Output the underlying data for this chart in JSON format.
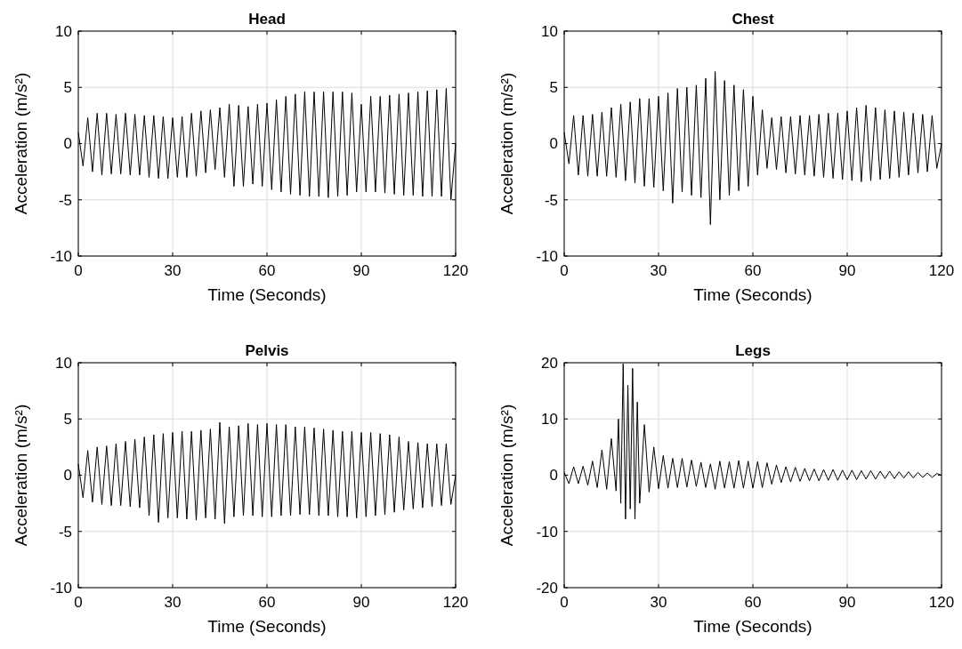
{
  "chart_data": [
    {
      "type": "line",
      "title": "Head",
      "xlabel": "Time (Seconds)",
      "ylabel": "Acceleration (m/s²)",
      "xlim": [
        0,
        120
      ],
      "xticks": [
        0,
        30,
        60,
        90,
        120
      ],
      "ylim": [
        -10,
        10
      ],
      "yticks": [
        -10,
        -5,
        0,
        5,
        10
      ],
      "grid": true,
      "x": [
        0,
        1.5,
        3,
        4.5,
        6,
        7.5,
        9,
        10.5,
        12,
        13.5,
        15,
        16.5,
        18,
        19.5,
        21,
        22.5,
        24,
        25.5,
        27,
        28.5,
        30,
        31.5,
        33,
        34.5,
        36,
        37.5,
        39,
        40.5,
        42,
        43.5,
        45,
        46.5,
        48,
        49.5,
        51,
        52.5,
        54,
        55.5,
        57,
        58.5,
        60,
        61.5,
        63,
        64.5,
        66,
        67.5,
        69,
        70.5,
        72,
        73.5,
        75,
        76.5,
        78,
        79.5,
        81,
        82.5,
        84,
        85.5,
        87,
        88.5,
        90,
        91.5,
        93,
        94.5,
        96,
        97.5,
        99,
        100.5,
        102,
        103.5,
        105,
        106.5,
        108,
        109.5,
        111,
        112.5,
        114,
        115.5,
        117,
        118.5,
        120
      ],
      "series": [
        {
          "color": "#000000",
          "values": [
            1,
            -2,
            2.3,
            -2.5,
            2.7,
            -2.8,
            2.7,
            -2.7,
            2.6,
            -2.7,
            2.7,
            -2.8,
            2.6,
            -2.8,
            2.5,
            -3.0,
            2.5,
            -3.1,
            2.4,
            -3.1,
            2.3,
            -3.0,
            2.4,
            -3.0,
            2.7,
            -2.9,
            2.9,
            -2.6,
            3.0,
            -2.3,
            3.2,
            -3.0,
            3.5,
            -3.8,
            3.4,
            -3.8,
            3.3,
            -3.6,
            3.5,
            -3.8,
            3.6,
            -4.1,
            3.9,
            -4.3,
            4.2,
            -4.5,
            4.4,
            -4.6,
            4.6,
            -4.7,
            4.6,
            -4.7,
            4.6,
            -4.8,
            4.6,
            -4.7,
            4.6,
            -4.6,
            4.5,
            -4.3,
            3.5,
            -4.3,
            4.2,
            -4.3,
            4.2,
            -4.4,
            4.3,
            -4.5,
            4.4,
            -4.6,
            4.5,
            -4.6,
            4.6,
            -4.7,
            4.7,
            -4.7,
            4.8,
            -4.7,
            4.9,
            -5.0,
            0
          ]
        }
      ]
    },
    {
      "type": "line",
      "title": "Chest",
      "xlabel": "Time (Seconds)",
      "ylabel": "Acceleration (m/s²)",
      "xlim": [
        0,
        120
      ],
      "xticks": [
        0,
        30,
        60,
        90,
        120
      ],
      "ylim": [
        -10,
        10
      ],
      "yticks": [
        -10,
        -5,
        0,
        5,
        10
      ],
      "grid": true,
      "x": [
        0,
        1.5,
        3,
        4.5,
        6,
        7.5,
        9,
        10.5,
        12,
        13.5,
        15,
        16.5,
        18,
        19.5,
        21,
        22.5,
        24,
        25.5,
        27,
        28.5,
        30,
        31.5,
        33,
        34.5,
        36,
        37.5,
        39,
        40.5,
        42,
        43.5,
        45,
        46.5,
        48,
        49.5,
        51,
        52.5,
        54,
        55.5,
        57,
        58.5,
        60,
        61.5,
        63,
        64.5,
        66,
        67.5,
        69,
        70.5,
        72,
        73.5,
        75,
        76.5,
        78,
        79.5,
        81,
        82.5,
        84,
        85.5,
        87,
        88.5,
        90,
        91.5,
        93,
        94.5,
        96,
        97.5,
        99,
        100.5,
        102,
        103.5,
        105,
        106.5,
        108,
        109.5,
        111,
        112.5,
        114,
        115.5,
        117,
        118.5,
        120
      ],
      "series": [
        {
          "color": "#000000",
          "values": [
            1,
            -1.8,
            2.5,
            -2.8,
            2.5,
            -2.9,
            2.6,
            -2.9,
            2.8,
            -2.9,
            3.2,
            -3.0,
            3.5,
            -3.3,
            3.7,
            -3.5,
            4.0,
            -3.8,
            4.0,
            -3.9,
            4.2,
            -4.2,
            4.5,
            -5.3,
            4.9,
            -4.3,
            5.0,
            -4.6,
            5.2,
            -4.8,
            5.8,
            -7.2,
            6.4,
            -5.0,
            5.6,
            -4.6,
            5.2,
            -4.2,
            4.8,
            -3.8,
            4.2,
            -2.8,
            3.0,
            -2.2,
            2.3,
            -2.3,
            2.4,
            -2.6,
            2.4,
            -2.7,
            2.5,
            -2.8,
            2.5,
            -2.9,
            2.6,
            -3.0,
            2.7,
            -3.1,
            2.7,
            -3.2,
            2.9,
            -3.3,
            3.2,
            -3.4,
            3.4,
            -3.3,
            3.2,
            -3.2,
            3.0,
            -3.1,
            2.9,
            -3.0,
            2.8,
            -2.8,
            2.7,
            -2.6,
            2.6,
            -2.5,
            2.5,
            -2.2,
            0
          ]
        }
      ]
    },
    {
      "type": "line",
      "title": "Pelvis",
      "xlabel": "Time (Seconds)",
      "ylabel": "Acceleration (m/s²)",
      "xlim": [
        0,
        120
      ],
      "xticks": [
        0,
        30,
        60,
        90,
        120
      ],
      "ylim": [
        -10,
        10
      ],
      "yticks": [
        -10,
        -5,
        0,
        5,
        10
      ],
      "grid": true,
      "x": [
        0,
        1.5,
        3,
        4.5,
        6,
        7.5,
        9,
        10.5,
        12,
        13.5,
        15,
        16.5,
        18,
        19.5,
        21,
        22.5,
        24,
        25.5,
        27,
        28.5,
        30,
        31.5,
        33,
        34.5,
        36,
        37.5,
        39,
        40.5,
        42,
        43.5,
        45,
        46.5,
        48,
        49.5,
        51,
        52.5,
        54,
        55.5,
        57,
        58.5,
        60,
        61.5,
        63,
        64.5,
        66,
        67.5,
        69,
        70.5,
        72,
        73.5,
        75,
        76.5,
        78,
        79.5,
        81,
        82.5,
        84,
        85.5,
        87,
        88.5,
        90,
        91.5,
        93,
        94.5,
        96,
        97.5,
        99,
        100.5,
        102,
        103.5,
        105,
        106.5,
        108,
        109.5,
        111,
        112.5,
        114,
        115.5,
        117,
        118.5,
        120
      ],
      "series": [
        {
          "color": "#000000",
          "values": [
            1,
            -2.0,
            2.2,
            -2.4,
            2.5,
            -2.6,
            2.6,
            -2.7,
            2.8,
            -2.7,
            3.0,
            -2.8,
            3.2,
            -2.9,
            3.4,
            -3.6,
            3.6,
            -4.2,
            3.7,
            -3.8,
            3.8,
            -3.8,
            3.9,
            -3.9,
            3.9,
            -4.0,
            4.0,
            -3.8,
            4.1,
            -3.9,
            4.7,
            -4.3,
            4.3,
            -3.7,
            4.4,
            -3.6,
            4.6,
            -3.6,
            4.5,
            -3.7,
            4.6,
            -3.7,
            4.5,
            -3.6,
            4.5,
            -3.6,
            4.3,
            -3.5,
            4.3,
            -3.5,
            4.2,
            -3.6,
            4.1,
            -3.6,
            4.0,
            -3.7,
            3.9,
            -3.7,
            3.9,
            -3.8,
            3.8,
            -3.7,
            3.8,
            -3.6,
            3.7,
            -3.5,
            3.6,
            -3.3,
            3.4,
            -3.1,
            3.0,
            -3.0,
            2.9,
            -2.9,
            2.8,
            -2.8,
            2.8,
            -2.7,
            2.8,
            -2.6,
            0
          ]
        }
      ]
    },
    {
      "type": "line",
      "title": "Legs",
      "xlabel": "Time (Seconds)",
      "ylabel": "Acceleration (m/s²)",
      "xlim": [
        0,
        120
      ],
      "xticks": [
        0,
        30,
        60,
        90,
        120
      ],
      "ylim": [
        -20,
        20
      ],
      "yticks": [
        -20,
        -10,
        0,
        10,
        20
      ],
      "grid": true,
      "x": [
        0,
        1.5,
        3,
        4.5,
        6,
        7.5,
        9,
        10.5,
        12,
        13.5,
        15,
        16.5,
        17.25,
        18,
        18.75,
        19.5,
        20.25,
        21,
        21.75,
        22.5,
        23.25,
        24,
        25.5,
        27,
        28.5,
        30,
        31.5,
        33,
        34.5,
        36,
        37.5,
        39,
        40.5,
        42,
        43.5,
        45,
        46.5,
        48,
        49.5,
        51,
        52.5,
        54,
        55.5,
        57,
        58.5,
        60,
        61.5,
        63,
        64.5,
        66,
        67.5,
        69,
        70.5,
        72,
        73.5,
        75,
        76.5,
        78,
        79.5,
        81,
        82.5,
        84,
        85.5,
        87,
        88.5,
        90,
        91.5,
        93,
        94.5,
        96,
        97.5,
        99,
        100.5,
        102,
        103.5,
        105,
        106.5,
        108,
        109.5,
        111,
        112.5,
        114,
        115.5,
        117,
        118.5,
        120
      ],
      "series": [
        {
          "color": "#000000",
          "values": [
            0.5,
            -1.5,
            1.5,
            -1.5,
            1.6,
            -1.8,
            2.5,
            -2.2,
            4.5,
            -2.5,
            6.5,
            -2.8,
            10,
            -5,
            19.8,
            -7.8,
            16,
            -6,
            19,
            -7.8,
            13,
            -5,
            9,
            -3.0,
            5,
            -2.4,
            3.5,
            -2.3,
            3.0,
            -2.2,
            3.0,
            -2.1,
            2.7,
            -2.0,
            2.3,
            -2.2,
            2.0,
            -2.5,
            2.5,
            -2.3,
            2.4,
            -2.3,
            2.6,
            -2.3,
            2.5,
            -2.3,
            2.4,
            -2.2,
            2.2,
            -1.6,
            1.8,
            -1.3,
            1.5,
            -1.2,
            1.4,
            -1.1,
            1.2,
            -1.0,
            1.1,
            -1.0,
            1.0,
            -0.9,
            1.0,
            -0.9,
            0.9,
            -0.8,
            0.9,
            -0.8,
            0.8,
            -0.7,
            0.8,
            -0.7,
            0.7,
            -0.6,
            0.7,
            -0.6,
            0.6,
            -0.5,
            0.6,
            -0.5,
            0.5,
            -0.4,
            0.4,
            -0.4,
            0.3,
            0
          ]
        }
      ]
    }
  ]
}
